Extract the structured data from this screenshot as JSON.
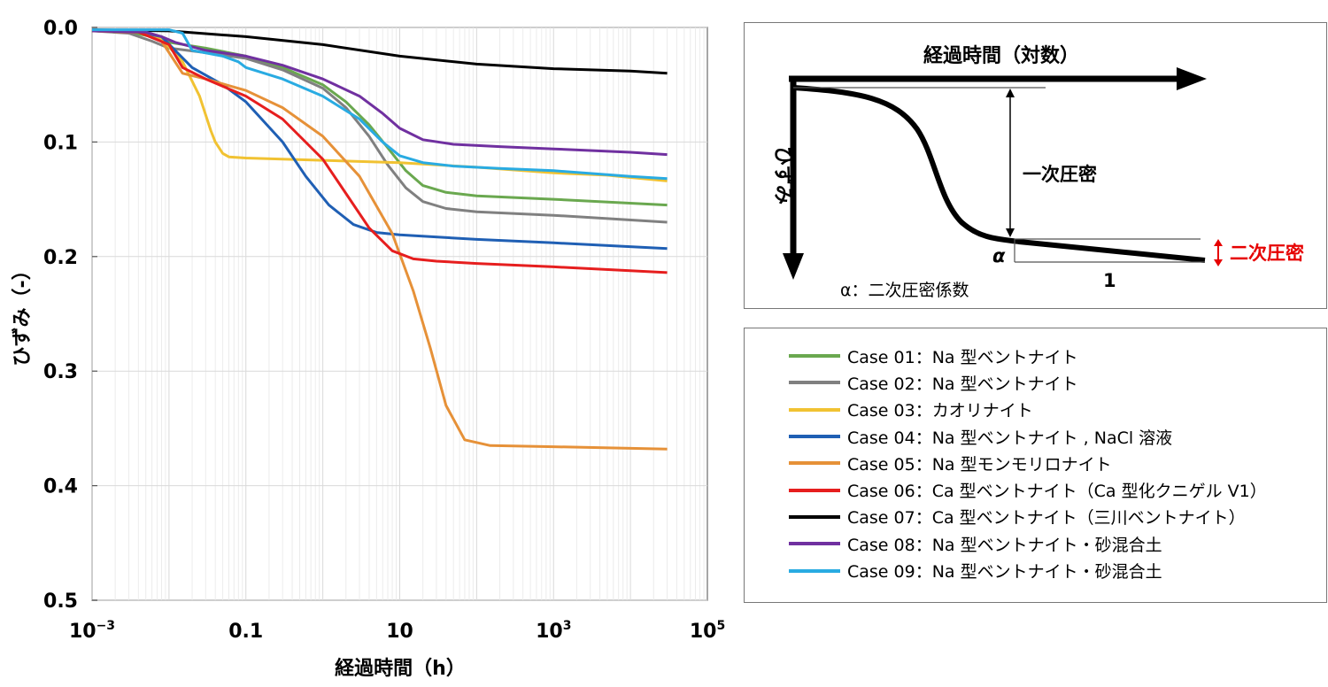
{
  "chart_data": {
    "type": "line",
    "xlabel": "経過時間（h）",
    "ylabel": "ひずみ（-）",
    "x_scale": "log",
    "xlim": [
      0.001,
      100000
    ],
    "ylim": [
      0.0,
      0.5
    ],
    "y_inverted": true,
    "grid": true,
    "y_ticks": [
      "0.0",
      "0.1",
      "0.2",
      "0.3",
      "0.4",
      "0.5"
    ],
    "x_ticks": [
      {
        "base": "10",
        "exp": "−3",
        "value": 0.001
      },
      {
        "base": "0.1",
        "exp": "",
        "value": 0.1
      },
      {
        "base": "10",
        "exp": "",
        "value": 10
      },
      {
        "base": "10",
        "exp": "3",
        "value": 1000
      },
      {
        "base": "10",
        "exp": "5",
        "value": 100000
      }
    ],
    "series": [
      {
        "name": "Case 01：Na 型ベントナイト",
        "color": "#6aa84f",
        "points": [
          [
            0.001,
            0.003
          ],
          [
            0.003,
            0.004
          ],
          [
            0.006,
            0.008
          ],
          [
            0.01,
            0.013
          ],
          [
            0.03,
            0.018
          ],
          [
            0.1,
            0.025
          ],
          [
            0.3,
            0.035
          ],
          [
            1,
            0.05
          ],
          [
            2,
            0.065
          ],
          [
            4,
            0.085
          ],
          [
            7,
            0.105
          ],
          [
            12,
            0.125
          ],
          [
            20,
            0.138
          ],
          [
            40,
            0.144
          ],
          [
            100,
            0.147
          ],
          [
            1000,
            0.15
          ],
          [
            30000,
            0.155
          ]
        ]
      },
      {
        "name": "Case 02：Na 型ベントナイト",
        "color": "#808080",
        "points": [
          [
            0.001,
            0.003
          ],
          [
            0.003,
            0.005
          ],
          [
            0.006,
            0.012
          ],
          [
            0.01,
            0.018
          ],
          [
            0.03,
            0.022
          ],
          [
            0.1,
            0.027
          ],
          [
            0.3,
            0.037
          ],
          [
            1,
            0.053
          ],
          [
            2,
            0.07
          ],
          [
            4,
            0.095
          ],
          [
            7,
            0.12
          ],
          [
            12,
            0.14
          ],
          [
            20,
            0.152
          ],
          [
            40,
            0.158
          ],
          [
            100,
            0.161
          ],
          [
            1000,
            0.164
          ],
          [
            30000,
            0.17
          ]
        ]
      },
      {
        "name": "Case 03：カオリナイト",
        "color": "#f1c232",
        "points": [
          [
            0.001,
            0.003
          ],
          [
            0.004,
            0.004
          ],
          [
            0.008,
            0.01
          ],
          [
            0.015,
            0.03
          ],
          [
            0.025,
            0.06
          ],
          [
            0.035,
            0.09
          ],
          [
            0.04,
            0.1
          ],
          [
            0.05,
            0.11
          ],
          [
            0.06,
            0.113
          ],
          [
            0.1,
            0.114
          ],
          [
            1,
            0.116
          ],
          [
            10,
            0.118
          ],
          [
            100,
            0.122
          ],
          [
            1000,
            0.127
          ],
          [
            5000,
            0.129
          ],
          [
            10000,
            0.131
          ],
          [
            30000,
            0.134
          ]
        ]
      },
      {
        "name": "Case 04：Na 型ベントナイト , NaCl 溶液",
        "color": "#1f5fb4",
        "points": [
          [
            0.001,
            0.003
          ],
          [
            0.004,
            0.004
          ],
          [
            0.008,
            0.008
          ],
          [
            0.012,
            0.02
          ],
          [
            0.02,
            0.035
          ],
          [
            0.05,
            0.05
          ],
          [
            0.1,
            0.065
          ],
          [
            0.3,
            0.1
          ],
          [
            0.6,
            0.13
          ],
          [
            1.2,
            0.155
          ],
          [
            2.5,
            0.172
          ],
          [
            5,
            0.179
          ],
          [
            10,
            0.181
          ],
          [
            100,
            0.185
          ],
          [
            1000,
            0.188
          ],
          [
            30000,
            0.193
          ]
        ]
      },
      {
        "name": "Case 05：Na 型モンモリロナイト",
        "color": "#e69138",
        "points": [
          [
            0.001,
            0.003
          ],
          [
            0.004,
            0.004
          ],
          [
            0.008,
            0.012
          ],
          [
            0.015,
            0.04
          ],
          [
            0.03,
            0.045
          ],
          [
            0.1,
            0.055
          ],
          [
            0.3,
            0.07
          ],
          [
            1,
            0.095
          ],
          [
            3,
            0.13
          ],
          [
            8,
            0.18
          ],
          [
            15,
            0.23
          ],
          [
            25,
            0.28
          ],
          [
            40,
            0.33
          ],
          [
            70,
            0.36
          ],
          [
            150,
            0.365
          ],
          [
            1000,
            0.366
          ],
          [
            30000,
            0.368
          ]
        ]
      },
      {
        "name": "Case 06：Ca 型ベントナイト（Ca 型化クニゲル V1）",
        "color": "#e61e1e",
        "points": [
          [
            0.001,
            0.003
          ],
          [
            0.004,
            0.004
          ],
          [
            0.01,
            0.015
          ],
          [
            0.015,
            0.035
          ],
          [
            0.03,
            0.045
          ],
          [
            0.1,
            0.06
          ],
          [
            0.3,
            0.08
          ],
          [
            1,
            0.115
          ],
          [
            2,
            0.145
          ],
          [
            4,
            0.175
          ],
          [
            8,
            0.195
          ],
          [
            15,
            0.202
          ],
          [
            30,
            0.204
          ],
          [
            100,
            0.206
          ],
          [
            1000,
            0.209
          ],
          [
            30000,
            0.214
          ]
        ]
      },
      {
        "name": "Case 07：Ca 型ベントナイト（三川ベントナイト）",
        "color": "#000000",
        "points": [
          [
            0.001,
            0.002
          ],
          [
            0.01,
            0.003
          ],
          [
            0.1,
            0.008
          ],
          [
            1,
            0.015
          ],
          [
            10,
            0.025
          ],
          [
            100,
            0.032
          ],
          [
            1000,
            0.036
          ],
          [
            10000,
            0.038
          ],
          [
            30000,
            0.04
          ]
        ]
      },
      {
        "name": "Case 08：Na 型ベントナイト・砂混合土",
        "color": "#7030a0",
        "points": [
          [
            0.001,
            0.003
          ],
          [
            0.005,
            0.004
          ],
          [
            0.008,
            0.008
          ],
          [
            0.012,
            0.013
          ],
          [
            0.03,
            0.02
          ],
          [
            0.1,
            0.025
          ],
          [
            0.3,
            0.033
          ],
          [
            1,
            0.045
          ],
          [
            3,
            0.06
          ],
          [
            6,
            0.075
          ],
          [
            10,
            0.088
          ],
          [
            20,
            0.098
          ],
          [
            50,
            0.102
          ],
          [
            200,
            0.104
          ],
          [
            1000,
            0.106
          ],
          [
            10000,
            0.109
          ],
          [
            30000,
            0.111
          ]
        ]
      },
      {
        "name": "Case 09：Na 型ベントナイト・砂混合土",
        "color": "#29abe2",
        "points": [
          [
            0.001,
            0.002
          ],
          [
            0.01,
            0.002
          ],
          [
            0.015,
            0.005
          ],
          [
            0.02,
            0.02
          ],
          [
            0.05,
            0.025
          ],
          [
            0.08,
            0.03
          ],
          [
            0.1,
            0.035
          ],
          [
            0.3,
            0.045
          ],
          [
            1,
            0.06
          ],
          [
            3,
            0.08
          ],
          [
            6,
            0.1
          ],
          [
            10,
            0.112
          ],
          [
            20,
            0.118
          ],
          [
            50,
            0.121
          ],
          [
            200,
            0.123
          ],
          [
            1000,
            0.125
          ],
          [
            10000,
            0.13
          ],
          [
            30000,
            0.132
          ]
        ]
      }
    ]
  },
  "schematic": {
    "x_axis_label": "経過時間（対数）",
    "y_axis_label": "ひずみ",
    "primary_label": "一次圧密",
    "secondary_label": "二次圧密",
    "alpha_symbol": "α",
    "slope_run": "1",
    "alpha_caption": "α：二次圧密係数",
    "secondary_color": "#e60000"
  }
}
